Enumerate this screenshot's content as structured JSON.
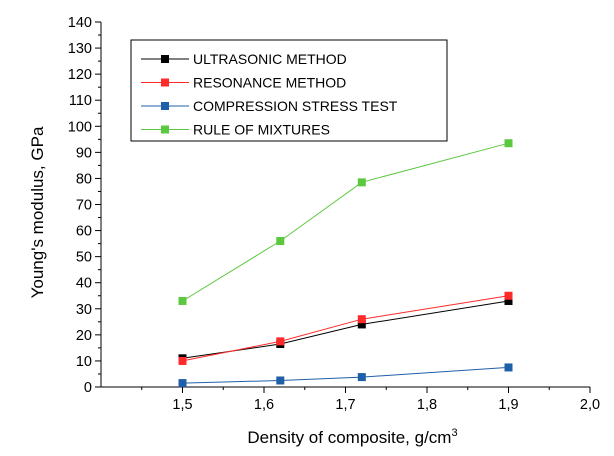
{
  "chart_data": {
    "type": "line",
    "xlabel": "Density of composite, g/cm",
    "xlabel_sup": "3",
    "ylabel": "Young's modulus, GPa",
    "xlim": [
      1.4,
      2.0
    ],
    "ylim": [
      0,
      140
    ],
    "x": [
      1.5,
      1.62,
      1.72,
      1.9
    ],
    "x_ticks": [
      1.5,
      1.6,
      1.7,
      1.8,
      1.9,
      2.0
    ],
    "x_tick_labels": [
      "1,5",
      "1,6",
      "1,7",
      "1,8",
      "1,9",
      "2,0"
    ],
    "y_ticks": [
      0,
      10,
      20,
      30,
      40,
      50,
      60,
      70,
      80,
      90,
      100,
      110,
      120,
      130,
      140
    ],
    "y_tick_labels": [
      "0",
      "10",
      "20",
      "30",
      "40",
      "50",
      "60",
      "70",
      "80",
      "90",
      "100",
      "110",
      "120",
      "130",
      "140"
    ],
    "grid": false,
    "legend_position": "top-left",
    "series": [
      {
        "name": "ULTRASONIC METHOD",
        "color": "#000000",
        "values": [
          11,
          16.5,
          24,
          33
        ]
      },
      {
        "name": "RESONANCE METHOD",
        "color": "#ff2a2a",
        "values": [
          10,
          17.5,
          26,
          35
        ]
      },
      {
        "name": "COMPRESSION STRESS TEST",
        "color": "#1f5fa8",
        "values": [
          1.5,
          2.5,
          3.8,
          7.5
        ]
      },
      {
        "name": "RULE OF MIXTURES",
        "color": "#5cc840",
        "values": [
          33,
          56,
          78.5,
          93.5
        ]
      }
    ]
  }
}
